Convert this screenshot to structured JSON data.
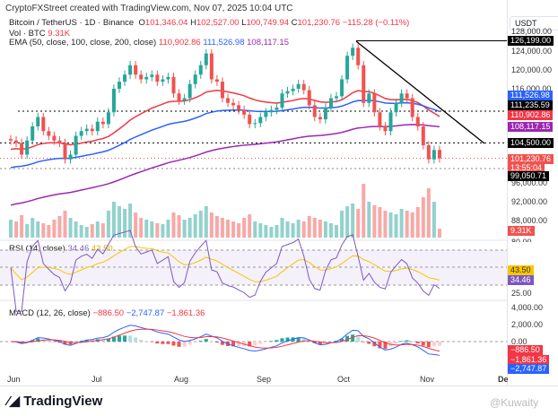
{
  "header": {
    "credit": "CryptoFXStreet created with TradingView.com, Nov 07, 2025 10:04 UTC",
    "symbol": "Bitcoin / TetherUS · 1D · Binance",
    "o_label": "O",
    "open": "101,346.04",
    "h_label": "H",
    "high": "102,527.00",
    "l_label": "L",
    "low": "100,749.94",
    "c_label": "C",
    "close": "101,230.76",
    "change": "−115.28 (−0.11%)",
    "vol_label": "Vol · BTC",
    "vol": "9.31K",
    "ema_label": "EMA (50, close, 100, close, 200, close)",
    "ema50": "110,902.86",
    "ema100": "111,526.98",
    "ema200": "108,117.15"
  },
  "rsi": {
    "label": "RSI (14, close)",
    "value": "34.46",
    "ma": "43.50",
    "ticks": [
      "80.00",
      "25.00"
    ]
  },
  "macd": {
    "label": "MACD (12, 26, close)",
    "hist": "−886.50",
    "macd": "−2,747.87",
    "signal": "−1,861.36",
    "ticks": [
      "4,000.00",
      "2,000.00",
      "0.00"
    ]
  },
  "axis": {
    "currency": "USDT",
    "ticks": [
      "128,000.00",
      "124,000.00",
      "120,000.00",
      "116,000.00",
      "96,000.00",
      "92,000.00",
      "88,000.00"
    ],
    "tags": {
      "high_line": "126,199.00",
      "ema100": "111,526.98",
      "line2": "111,235.59",
      "ema50": "110,902.86",
      "ema200": "108,117.15",
      "line1": "104,500.00",
      "price": "101,230.76",
      "countdown": "13:55:04",
      "low_line": "99,050.71",
      "vol": "9.31K",
      "rsi_ma": "43.50",
      "rsi": "34.46",
      "macd_hist": "−886.50",
      "macd_signal": "−1,861.36",
      "macd": "−2,747.87"
    }
  },
  "time_axis": [
    "Jun",
    "Jul",
    "Aug",
    "Sep",
    "Oct",
    "Nov",
    "De"
  ],
  "footer": {
    "logo": "TradingView",
    "watermark": "@Kuwaity"
  },
  "colors": {
    "up": "#26a69a",
    "down": "#ef5350",
    "ema50": "#f23645",
    "ema100": "#2962ff",
    "ema200": "#9c27b0"
  },
  "chart_data": {
    "type": "candlestick",
    "title": "Bitcoin / TetherUS 1D",
    "ylabel": "USDT",
    "ylim": [
      84000,
      128500
    ],
    "step_days": 2,
    "start": "Jun 1 2025",
    "closes": [
      105,
      104.5,
      102,
      105,
      108,
      110,
      107,
      106,
      105,
      104.5,
      101,
      102,
      106,
      107,
      107.5,
      107,
      109,
      108.5,
      111,
      116,
      117.5,
      119,
      121,
      119,
      118,
      118.5,
      119,
      117.5,
      118,
      118.5,
      115,
      113.5,
      114,
      117,
      119,
      121,
      123.5,
      118,
      117.5,
      114,
      113,
      112.5,
      111.5,
      110.5,
      108.5,
      108.7,
      110,
      111,
      111.5,
      112,
      115,
      115.5,
      116,
      117,
      115.7,
      112.5,
      110,
      109.5,
      112,
      114,
      114.4,
      118,
      123,
      124.7,
      121,
      113,
      115,
      111,
      108,
      107,
      111,
      113,
      115,
      114,
      110,
      108,
      104,
      101,
      103,
      101.23
    ],
    "volumes": [
      20,
      18,
      25,
      15,
      22,
      18,
      16,
      14,
      20,
      24,
      30,
      22,
      18,
      14,
      12,
      15,
      18,
      16,
      30,
      40,
      35,
      32,
      38,
      28,
      22,
      20,
      18,
      16,
      15,
      20,
      28,
      25,
      20,
      22,
      26,
      30,
      35,
      28,
      24,
      22,
      20,
      18,
      16,
      22,
      26,
      18,
      16,
      14,
      12,
      14,
      22,
      18,
      16,
      20,
      18,
      24,
      22,
      20,
      18,
      16,
      14,
      30,
      35,
      38,
      32,
      60,
      40,
      36,
      34,
      30,
      28,
      26,
      32,
      30,
      28,
      34,
      45,
      55,
      40,
      10
    ],
    "levels": [
      126199,
      111235.59,
      104500,
      99050.71
    ]
  }
}
